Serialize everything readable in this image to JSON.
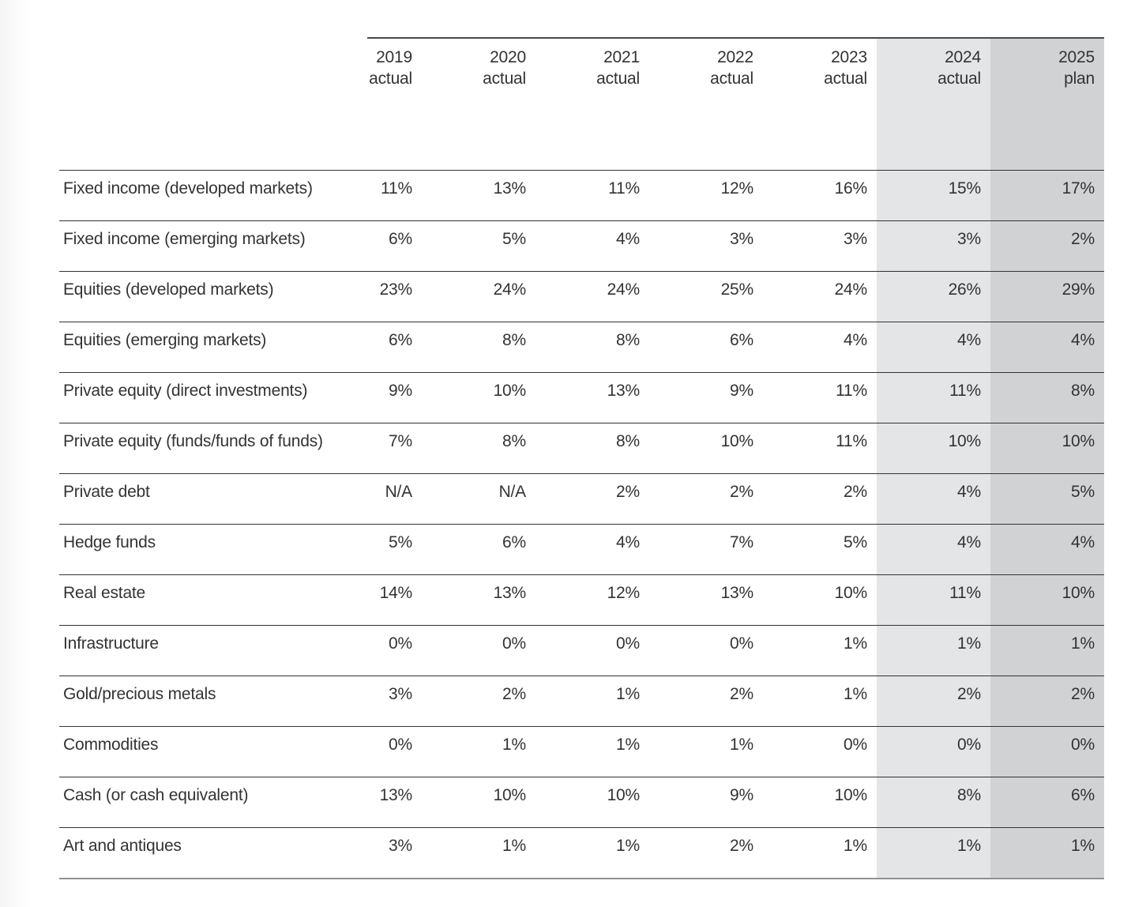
{
  "table": {
    "columns": [
      {
        "year": "2019",
        "qualifier": "actual",
        "shade": "none"
      },
      {
        "year": "2020",
        "qualifier": "actual",
        "shade": "none"
      },
      {
        "year": "2021",
        "qualifier": "actual",
        "shade": "none"
      },
      {
        "year": "2022",
        "qualifier": "actual",
        "shade": "none"
      },
      {
        "year": "2023",
        "qualifier": "actual",
        "shade": "none"
      },
      {
        "year": "2024",
        "qualifier": "actual",
        "shade": "light"
      },
      {
        "year": "2025",
        "qualifier": "plan",
        "shade": "dark"
      }
    ],
    "rows": [
      {
        "label": "Fixed income (developed markets)",
        "values": [
          "11%",
          "13%",
          "11%",
          "12%",
          "16%",
          "15%",
          "17%"
        ]
      },
      {
        "label": "Fixed income (emerging markets)",
        "values": [
          "6%",
          "5%",
          "4%",
          "3%",
          "3%",
          "3%",
          "2%"
        ]
      },
      {
        "label": "Equities (developed markets)",
        "values": [
          "23%",
          "24%",
          "24%",
          "25%",
          "24%",
          "26%",
          "29%"
        ]
      },
      {
        "label": "Equities (emerging markets)",
        "values": [
          "6%",
          "8%",
          "8%",
          "6%",
          "4%",
          "4%",
          "4%"
        ]
      },
      {
        "label": "Private equity (direct investments)",
        "values": [
          "9%",
          "10%",
          "13%",
          "9%",
          "11%",
          "11%",
          "8%"
        ]
      },
      {
        "label": "Private equity (funds/funds of funds)",
        "values": [
          "7%",
          "8%",
          "8%",
          "10%",
          "11%",
          "10%",
          "10%"
        ]
      },
      {
        "label": "Private debt",
        "values": [
          "N/A",
          "N/A",
          "2%",
          "2%",
          "2%",
          "4%",
          "5%"
        ]
      },
      {
        "label": "Hedge funds",
        "values": [
          "5%",
          "6%",
          "4%",
          "7%",
          "5%",
          "4%",
          "4%"
        ]
      },
      {
        "label": "Real estate",
        "values": [
          "14%",
          "13%",
          "12%",
          "13%",
          "10%",
          "11%",
          "10%"
        ]
      },
      {
        "label": "Infrastructure",
        "values": [
          "0%",
          "0%",
          "0%",
          "0%",
          "1%",
          "1%",
          "1%"
        ]
      },
      {
        "label": "Gold/precious metals",
        "values": [
          "3%",
          "2%",
          "1%",
          "2%",
          "1%",
          "2%",
          "2%"
        ]
      },
      {
        "label": "Commodities",
        "values": [
          "0%",
          "1%",
          "1%",
          "1%",
          "0%",
          "0%",
          "0%"
        ]
      },
      {
        "label": "Cash (or cash equivalent)",
        "values": [
          "13%",
          "10%",
          "10%",
          "9%",
          "10%",
          "8%",
          "6%"
        ]
      },
      {
        "label": "Art and antiques",
        "values": [
          "3%",
          "1%",
          "1%",
          "2%",
          "1%",
          "1%",
          "1%"
        ]
      }
    ]
  },
  "colors": {
    "shade_light": "#e4e5e6",
    "shade_dark": "#d1d2d3",
    "row_rule": "#333333",
    "header_top_rule": "#4a4a4a",
    "bottom_rule": "#919191",
    "text": "#333333"
  }
}
